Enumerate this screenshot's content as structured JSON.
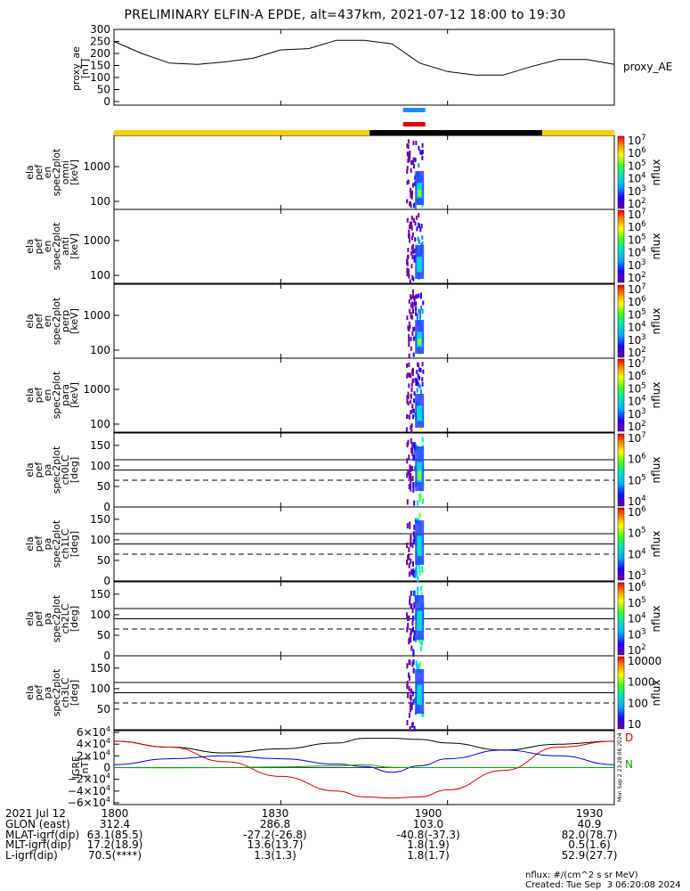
{
  "title": "PRELIMINARY ELFIN-A EPDE, alt=437km, 2021-07-12 18:00 to 19:30",
  "proxy_ae_panel": {
    "ylabel_lines": [
      "proxy_ae",
      "[nT]"
    ],
    "yticks": [
      "300",
      "250",
      "200",
      "150",
      "100",
      "50",
      "0"
    ],
    "right_label": "proxy_AE"
  },
  "spec_panels": [
    {
      "ylabel_lines": [
        "ela",
        "pef",
        "en",
        "spec2plot",
        "omni",
        "[keV]"
      ],
      "yticks": [
        "1000",
        "100"
      ],
      "cbar_ticks": [
        "10^7",
        "10^6",
        "10^5",
        "10^4",
        "10^3",
        "10^2"
      ]
    },
    {
      "ylabel_lines": [
        "ela",
        "pef",
        "en",
        "spec2plot",
        "anti",
        "[keV]"
      ],
      "yticks": [
        "1000",
        "100"
      ],
      "cbar_ticks": [
        "10^7",
        "10^6",
        "10^5",
        "10^4",
        "10^3",
        "10^2"
      ]
    },
    {
      "ylabel_lines": [
        "ela",
        "pef",
        "en",
        "spec2plot",
        "perp",
        "[keV]"
      ],
      "yticks": [
        "1000",
        "100"
      ],
      "cbar_ticks": [
        "10^7",
        "10^6",
        "10^5",
        "10^4",
        "10^3",
        "10^2"
      ]
    },
    {
      "ylabel_lines": [
        "ela",
        "pef",
        "en",
        "spec2plot",
        "para",
        "[keV]"
      ],
      "yticks": [
        "1000",
        "100"
      ],
      "cbar_ticks": [
        "10^7",
        "10^6",
        "10^5",
        "10^4",
        "10^3",
        "10^2"
      ]
    }
  ],
  "pa_panels": [
    {
      "ylabel_lines": [
        "ela",
        "pef",
        "pa",
        "spec2plot",
        "ch0LC",
        "[deg]"
      ],
      "yticks": [
        "150",
        "100",
        "50",
        "0"
      ],
      "cbar_ticks": [
        "10^7",
        "10^6",
        "10^5",
        "10^4"
      ]
    },
    {
      "ylabel_lines": [
        "ela",
        "pef",
        "pa",
        "spec2plot",
        "ch1LC",
        "[deg]"
      ],
      "yticks": [
        "150",
        "100",
        "50",
        "0"
      ],
      "cbar_ticks": [
        "10^6",
        "10^5",
        "10^4",
        "10^3"
      ]
    },
    {
      "ylabel_lines": [
        "ela",
        "pef",
        "pa",
        "spec2plot",
        "ch2LC",
        "[deg]"
      ],
      "yticks": [
        "150",
        "100",
        "50",
        "0"
      ],
      "cbar_ticks": [
        "10^6",
        "10^5",
        "10^4",
        "10^3",
        "10^2"
      ]
    },
    {
      "ylabel_lines": [
        "ela",
        "pef",
        "pa",
        "spec2plot",
        "ch3LC",
        "[deg]"
      ],
      "yticks": [
        "150",
        "100",
        "50"
      ],
      "cbar_ticks": [
        "10000",
        "1000",
        "100",
        "10"
      ]
    }
  ],
  "cbar_label": "nflux",
  "igrf_panel": {
    "ylabel_lines": [
      "IGRF",
      "[nT]"
    ],
    "yticks": [
      "6×10^4",
      "4×10^4",
      "2×10^4",
      "0",
      "−2×10^4",
      "−4×10^4",
      "−6×10^4"
    ],
    "legend": [
      "D",
      "N"
    ],
    "side_stamp": "Mon Sep 2 23:28:06 2024"
  },
  "chart_data": {
    "type": "line",
    "title": "PRELIMINARY ELFIN-A EPDE, alt=437km, 2021-07-12 18:00 to 19:30",
    "xlabel": "",
    "x_range_minutes": [
      0,
      90
    ],
    "x_ticks": [
      "1800",
      "1830",
      "1900",
      "1930"
    ],
    "proxy_ae": {
      "ylabel": "proxy_ae [nT]",
      "ylim": [
        0,
        300
      ],
      "x_minutes": [
        0,
        5,
        10,
        15,
        20,
        25,
        30,
        35,
        40,
        45,
        50,
        55,
        60,
        65,
        70,
        75,
        80,
        85,
        90
      ],
      "values": [
        250,
        200,
        160,
        155,
        165,
        180,
        215,
        220,
        255,
        255,
        240,
        160,
        125,
        110,
        110,
        145,
        175,
        175,
        155
      ]
    },
    "spectrogram_activity_minutes": [
      52.5,
      55.5
    ],
    "igrf": {
      "ylabel": "IGRF [nT]",
      "ylim": [
        -60000,
        60000
      ],
      "x_minutes": [
        0,
        10,
        20,
        30,
        40,
        45,
        50,
        55,
        60,
        70,
        80,
        90
      ],
      "series": [
        {
          "name": "",
          "color": "#000000",
          "values": [
            45000,
            35000,
            25000,
            32000,
            42000,
            50000,
            50000,
            48000,
            42000,
            30000,
            40000,
            45000
          ]
        },
        {
          "name": "D",
          "color": "#cc0000",
          "values": [
            45000,
            35000,
            10000,
            -15000,
            -40000,
            -50000,
            -52000,
            -50000,
            -38000,
            -5000,
            35000,
            45000
          ]
        },
        {
          "name": "",
          "color": "#0000cc",
          "values": [
            5000,
            15000,
            20000,
            15000,
            6000,
            2000,
            -8000,
            3000,
            15000,
            30000,
            20000,
            5000
          ]
        },
        {
          "name": "N",
          "color": "#00aa00",
          "values": [
            0,
            -500,
            0,
            1000,
            3000,
            5000,
            500,
            0,
            0,
            0,
            0,
            0
          ]
        }
      ]
    },
    "mode_bars": {
      "blue_minutes": [
        52,
        56
      ],
      "red_minutes": [
        52,
        56
      ],
      "yellow_black_black_minutes": [
        46,
        77
      ]
    }
  },
  "footer": {
    "rows": [
      [
        "2021 Jul 12",
        "1800",
        "1830",
        "1900",
        "1930"
      ],
      [
        "GLON (east)",
        "312.4",
        "286.8",
        "103.0",
        "40.9"
      ],
      [
        "MLAT-igrf(dip)",
        "63.1(85.5)",
        "-27.2(-26.8)",
        "-40.8(-37.3)",
        "82.0(78.7)"
      ],
      [
        "MLT-igrf(dip)",
        "17.2(18.9)",
        "13.6(13.7)",
        "1.8(1.9)",
        "0.5(1.6)"
      ],
      [
        "L-igrf(dip)",
        "70.5(****)",
        "1.3(1.3)",
        "1.8(1.7)",
        "52.9(27.7)"
      ]
    ],
    "units": "nflux: #/(cm^2 s sr MeV)",
    "created": "Created: Tue Sep  3 06:20:08 2024"
  }
}
